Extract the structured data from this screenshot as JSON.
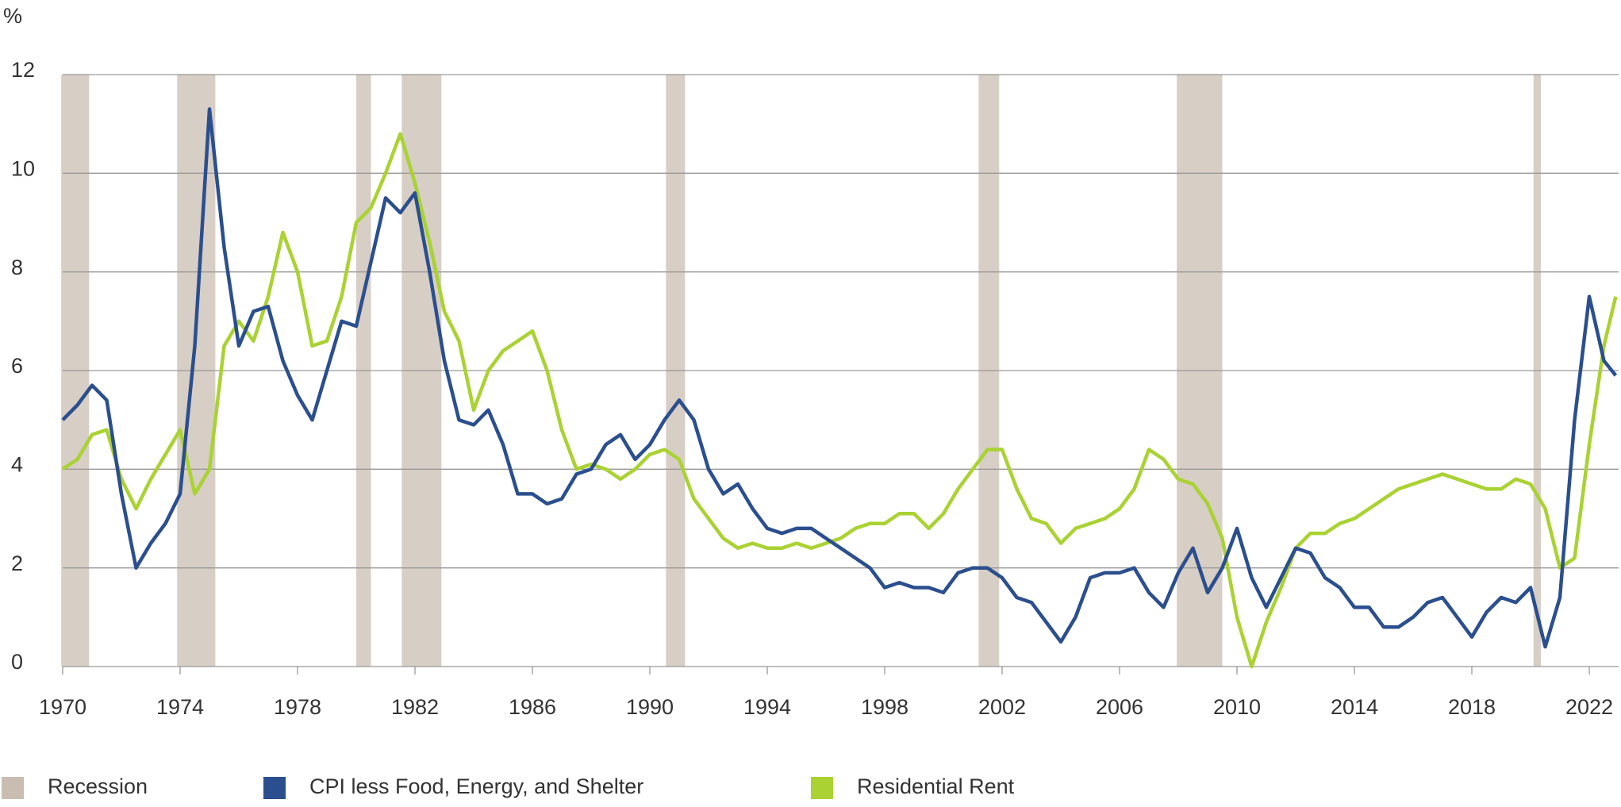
{
  "chart_data": {
    "type": "line",
    "y_unit": "%",
    "xlim": [
      1970,
      2023
    ],
    "xticks": [
      1970,
      1974,
      1978,
      1982,
      1986,
      1990,
      1994,
      1998,
      2002,
      2006,
      2010,
      2014,
      2018,
      2022
    ],
    "ylim": [
      0,
      12
    ],
    "yticks": [
      0,
      2,
      4,
      6,
      8,
      10,
      12
    ],
    "grid": true,
    "recession": {
      "name": "Recession",
      "color": "#bcaf a3",
      "periods": [
        [
          1969.95,
          1970.9
        ],
        [
          1973.9,
          1975.2
        ],
        [
          1980.0,
          1980.5
        ],
        [
          1981.55,
          1982.9
        ],
        [
          1990.55,
          1991.2
        ],
        [
          2001.2,
          2001.9
        ],
        [
          2007.95,
          2009.5
        ],
        [
          2020.1,
          2020.35
        ]
      ]
    },
    "x": [
      1970,
      1970.5,
      1971,
      1971.5,
      1972,
      1972.5,
      1973,
      1973.5,
      1974,
      1974.5,
      1975,
      1975.5,
      1976,
      1976.5,
      1977,
      1977.5,
      1978,
      1978.5,
      1979,
      1979.5,
      1980,
      1980.5,
      1981,
      1981.5,
      1982,
      1982.5,
      1983,
      1983.5,
      1984,
      1984.5,
      1985,
      1985.5,
      1986,
      1986.5,
      1987,
      1987.5,
      1988,
      1988.5,
      1989,
      1989.5,
      1990,
      1990.5,
      1991,
      1991.5,
      1992,
      1992.5,
      1993,
      1993.5,
      1994,
      1994.5,
      1995,
      1995.5,
      1996,
      1996.5,
      1997,
      1997.5,
      1998,
      1998.5,
      1999,
      1999.5,
      2000,
      2000.5,
      2001,
      2001.5,
      2002,
      2002.5,
      2003,
      2003.5,
      2004,
      2004.5,
      2005,
      2005.5,
      2006,
      2006.5,
      2007,
      2007.5,
      2008,
      2008.5,
      2009,
      2009.5,
      2010,
      2010.5,
      2011,
      2011.5,
      2012,
      2012.5,
      2013,
      2013.5,
      2014,
      2014.5,
      2015,
      2015.5,
      2016,
      2016.5,
      2017,
      2017.5,
      2018,
      2018.5,
      2019,
      2019.5,
      2020,
      2020.5,
      2021,
      2021.5,
      2022,
      2022.5,
      2022.9
    ],
    "series": [
      {
        "name": "CPI less Food, Energy, and Shelter",
        "color": "#2b4f8e",
        "values": [
          5.0,
          5.3,
          5.7,
          5.4,
          3.5,
          2.0,
          2.5,
          2.9,
          3.5,
          6.5,
          11.3,
          8.5,
          6.5,
          7.2,
          7.3,
          6.2,
          5.5,
          5.0,
          6.0,
          7.0,
          6.9,
          8.2,
          9.5,
          9.2,
          9.6,
          8.0,
          6.2,
          5.0,
          4.9,
          5.2,
          4.5,
          3.5,
          3.5,
          3.3,
          3.4,
          3.9,
          4.0,
          4.5,
          4.7,
          4.2,
          4.5,
          5.0,
          5.4,
          5.0,
          4.0,
          3.5,
          3.7,
          3.2,
          2.8,
          2.7,
          2.8,
          2.8,
          2.6,
          2.4,
          2.2,
          2.0,
          1.6,
          1.7,
          1.6,
          1.6,
          1.5,
          1.9,
          2.0,
          2.0,
          1.8,
          1.4,
          1.3,
          0.9,
          0.5,
          1.0,
          1.8,
          1.9,
          1.9,
          2.0,
          1.5,
          1.2,
          1.9,
          2.4,
          1.5,
          2.0,
          2.8,
          1.8,
          1.2,
          1.8,
          2.4,
          2.3,
          1.8,
          1.6,
          1.2,
          1.2,
          0.8,
          0.8,
          1.0,
          1.3,
          1.4,
          1.0,
          0.6,
          1.1,
          1.4,
          1.3,
          1.6,
          0.4,
          1.4,
          5.0,
          7.5,
          6.2,
          5.9
        ]
      },
      {
        "name": "Residential Rent",
        "color": "#a9d232",
        "values": [
          4.0,
          4.2,
          4.7,
          4.8,
          3.8,
          3.2,
          3.8,
          4.3,
          4.8,
          3.5,
          4.0,
          6.5,
          7.0,
          6.6,
          7.5,
          8.8,
          8.0,
          6.5,
          6.6,
          7.5,
          9.0,
          9.3,
          10.0,
          10.8,
          9.8,
          8.6,
          7.2,
          6.6,
          5.2,
          6.0,
          6.4,
          6.6,
          6.8,
          6.0,
          4.8,
          4.0,
          4.1,
          4.0,
          3.8,
          4.0,
          4.3,
          4.4,
          4.2,
          3.4,
          3.0,
          2.6,
          2.4,
          2.5,
          2.4,
          2.4,
          2.5,
          2.4,
          2.5,
          2.6,
          2.8,
          2.9,
          2.9,
          3.1,
          3.1,
          2.8,
          3.1,
          3.6,
          4.0,
          4.4,
          4.4,
          3.6,
          3.0,
          2.9,
          2.5,
          2.8,
          2.9,
          3.0,
          3.2,
          3.6,
          4.4,
          4.2,
          3.8,
          3.7,
          3.3,
          2.6,
          1.0,
          0.0,
          0.9,
          1.6,
          2.4,
          2.7,
          2.7,
          2.9,
          3.0,
          3.2,
          3.4,
          3.6,
          3.7,
          3.8,
          3.9,
          3.8,
          3.7,
          3.6,
          3.6,
          3.8,
          3.7,
          3.2,
          2.0,
          2.2,
          4.5,
          6.5,
          7.5
        ]
      }
    ]
  }
}
